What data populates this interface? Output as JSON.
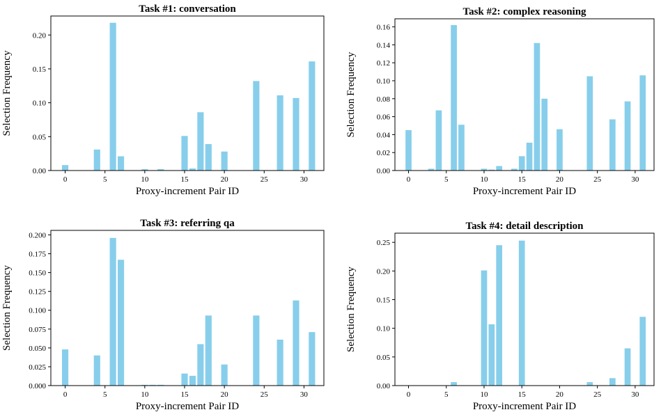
{
  "colors": {
    "bar": "#87CEEB",
    "axis": "#000000"
  },
  "chart_data": [
    {
      "type": "bar",
      "title": "Task #1: conversation",
      "xlabel": "Proxy-increment Pair ID",
      "ylabel": "Selection Frequency",
      "xticks": [
        "0",
        "5",
        "10",
        "15",
        "20",
        "25",
        "30"
      ],
      "yticks": [
        "0.00",
        "0.05",
        "0.10",
        "0.15",
        "0.20"
      ],
      "ylim": [
        0,
        0.228
      ],
      "x": [
        0,
        1,
        2,
        3,
        4,
        5,
        6,
        7,
        8,
        9,
        10,
        11,
        12,
        13,
        14,
        15,
        16,
        17,
        18,
        19,
        20,
        21,
        22,
        23,
        24,
        25,
        26,
        27,
        28,
        29,
        30,
        31
      ],
      "values": [
        0.008,
        0,
        0,
        0,
        0.031,
        0,
        0.218,
        0.021,
        0,
        0,
        0.002,
        0,
        0.002,
        0,
        0,
        0.051,
        0.003,
        0.086,
        0.039,
        0,
        0.028,
        0,
        0,
        0,
        0.132,
        0,
        0,
        0.111,
        0,
        0.107,
        0,
        0.161
      ]
    },
    {
      "type": "bar",
      "title": "Task #2: complex reasoning",
      "xlabel": "Proxy-increment Pair ID",
      "ylabel": "Selection Frequency",
      "xticks": [
        "0",
        "5",
        "10",
        "15",
        "20",
        "25",
        "30"
      ],
      "yticks": [
        "0.00",
        "0.02",
        "0.04",
        "0.06",
        "0.08",
        "0.10",
        "0.12",
        "0.14",
        "0.16"
      ],
      "ylim": [
        0,
        0.169
      ],
      "x": [
        0,
        1,
        2,
        3,
        4,
        5,
        6,
        7,
        8,
        9,
        10,
        11,
        12,
        13,
        14,
        15,
        16,
        17,
        18,
        19,
        20,
        21,
        22,
        23,
        24,
        25,
        26,
        27,
        28,
        29,
        30,
        31
      ],
      "values": [
        0.045,
        0,
        0,
        0.002,
        0.067,
        0,
        0.162,
        0.051,
        0,
        0,
        0.002,
        0.001,
        0.005,
        0,
        0.002,
        0.016,
        0.031,
        0.142,
        0.08,
        0,
        0.046,
        0,
        0,
        0,
        0.105,
        0,
        0,
        0.057,
        0,
        0.077,
        0,
        0.106
      ]
    },
    {
      "type": "bar",
      "title": "Task #3: referring qa",
      "xlabel": "Proxy-increment Pair ID",
      "ylabel": "Selection Frequency",
      "xticks": [
        "0",
        "5",
        "10",
        "15",
        "20",
        "25",
        "30"
      ],
      "yticks": [
        "0.000",
        "0.025",
        "0.050",
        "0.075",
        "0.100",
        "0.125",
        "0.150",
        "0.175",
        "0.200"
      ],
      "ylim": [
        0,
        0.206
      ],
      "x": [
        0,
        1,
        2,
        3,
        4,
        5,
        6,
        7,
        8,
        9,
        10,
        11,
        12,
        13,
        14,
        15,
        16,
        17,
        18,
        19,
        20,
        21,
        22,
        23,
        24,
        25,
        26,
        27,
        28,
        29,
        30,
        31
      ],
      "values": [
        0.048,
        0,
        0,
        0,
        0.04,
        0,
        0.196,
        0.167,
        0,
        0,
        0.001,
        0.001,
        0.001,
        0,
        0,
        0.016,
        0.013,
        0.055,
        0.093,
        0,
        0.028,
        0,
        0,
        0,
        0.093,
        0,
        0,
        0.061,
        0,
        0.113,
        0,
        0.071
      ]
    },
    {
      "type": "bar",
      "title": "Task #4: detail description",
      "xlabel": "Proxy-increment Pair ID",
      "ylabel": "Selection Frequency",
      "xticks": [
        "0",
        "5",
        "10",
        "15",
        "20",
        "25",
        "30"
      ],
      "yticks": [
        "0.00",
        "0.05",
        "0.10",
        "0.15",
        "0.20",
        "0.25"
      ],
      "ylim": [
        0,
        0.266
      ],
      "x": [
        0,
        1,
        2,
        3,
        4,
        5,
        6,
        7,
        8,
        9,
        10,
        11,
        12,
        13,
        14,
        15,
        16,
        17,
        18,
        19,
        20,
        21,
        22,
        23,
        24,
        25,
        26,
        27,
        28,
        29,
        30,
        31
      ],
      "values": [
        0,
        0,
        0,
        0,
        0,
        0,
        0.006,
        0,
        0,
        0,
        0.201,
        0.107,
        0.245,
        0,
        0,
        0.253,
        0,
        0,
        0,
        0,
        0,
        0,
        0,
        0,
        0.006,
        0,
        0,
        0.013,
        0,
        0.065,
        0,
        0.12
      ]
    }
  ]
}
